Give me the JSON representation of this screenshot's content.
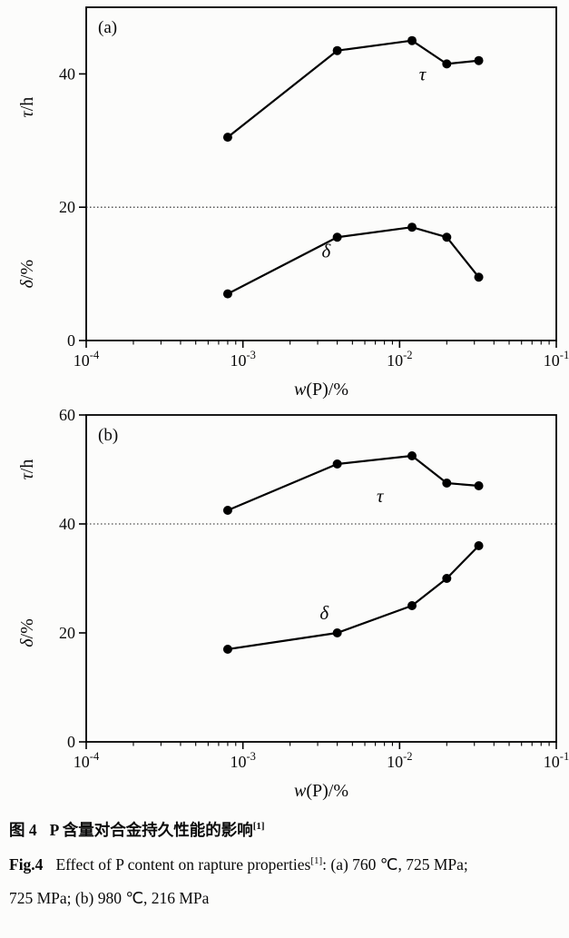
{
  "figure": {
    "caption_zh": {
      "label": "图 4",
      "text": "P 含量对合金持久性能的影响",
      "ref": "[1]"
    },
    "caption_en": {
      "label": "Fig.4",
      "text": "Effect of P content on rapture properties",
      "ref": "[1]",
      "tail1": ": (a) 760 ℃, 725 MPa;",
      "tail2": "725 MPa; (b) 980 ℃, 216 MPa"
    }
  },
  "chart_data": [
    {
      "type": "line",
      "panel_label": "(a)",
      "xscale": "log",
      "xlim": [
        0.0001,
        0.1
      ],
      "ylim": [
        0,
        50
      ],
      "yticks": [
        0,
        20,
        40
      ],
      "xtick_exponents": [
        -4,
        -3,
        -2,
        -1
      ],
      "xtick_labels": [
        "10-4",
        "10-3",
        "10-2",
        "10-1"
      ],
      "divider_y": 20,
      "grid": false,
      "xlabel_italic": "w",
      "xlabel_rest": "(P)/%",
      "ylabel_top": {
        "symbol": "τ",
        "suffix": "/h"
      },
      "ylabel_bottom": {
        "symbol": "δ",
        "suffix": "/%"
      },
      "x": [
        0.0008,
        0.004,
        0.012,
        0.02,
        0.032
      ],
      "series": [
        {
          "name": "τ",
          "values": [
            30.5,
            43.5,
            45,
            41.5,
            42
          ],
          "label_x": 0.014,
          "label_y": 39
        },
        {
          "name": "δ",
          "values": [
            7,
            15.5,
            17,
            15.5,
            9.5
          ],
          "label_x": 0.0034,
          "label_y": 12.5
        }
      ],
      "conditions": "760 ℃, 725 MPa"
    },
    {
      "type": "line",
      "panel_label": "(b)",
      "xscale": "log",
      "xlim": [
        0.0001,
        0.1
      ],
      "ylim": [
        0,
        60
      ],
      "yticks": [
        0,
        20,
        40,
        60
      ],
      "xtick_exponents": [
        -4,
        -3,
        -2,
        -1
      ],
      "xtick_labels": [
        "10-4",
        "10-3",
        "10-2",
        "10-1"
      ],
      "divider_y": 40,
      "grid": false,
      "xlabel_italic": "w",
      "xlabel_rest": "(P)/%",
      "ylabel_top": {
        "symbol": "τ",
        "suffix": "/h"
      },
      "ylabel_bottom": {
        "symbol": "δ",
        "suffix": "/%"
      },
      "x": [
        0.0008,
        0.004,
        0.012,
        0.02,
        0.032
      ],
      "series": [
        {
          "name": "τ",
          "values": [
            42.5,
            51,
            52.5,
            47.5,
            47
          ],
          "label_x": 0.0075,
          "label_y": 44
        },
        {
          "name": "δ",
          "values": [
            17,
            20,
            25,
            30,
            36
          ],
          "label_x": 0.0033,
          "label_y": 22.5
        }
      ],
      "conditions": "980 ℃, 216 MPa"
    }
  ]
}
